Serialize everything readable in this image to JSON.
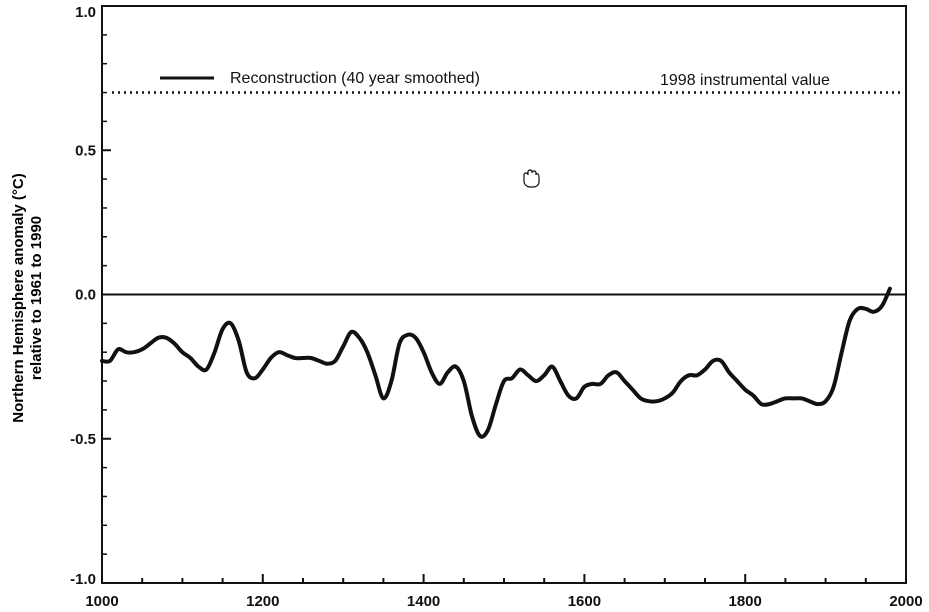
{
  "chart_data": {
    "type": "line",
    "ylabel_line1": "Northern Hemisphere anomaly (°C)",
    "ylabel_line2": "relative to 1961 to 1990",
    "xlim": [
      1000,
      2000
    ],
    "ylim": [
      -1.0,
      1.0
    ],
    "x_ticks": [
      {
        "value": 1000,
        "label": "1000"
      },
      {
        "value": 1200,
        "label": "1200"
      },
      {
        "value": 1400,
        "label": "1400"
      },
      {
        "value": 1600,
        "label": "1600"
      },
      {
        "value": 1800,
        "label": "1800"
      },
      {
        "value": 2000,
        "label": "2000"
      }
    ],
    "y_ticks": [
      {
        "value": 1.0,
        "label": "1.0"
      },
      {
        "value": 0.5,
        "label": "0.5"
      },
      {
        "value": 0.0,
        "label": "0.0"
      },
      {
        "value": -0.5,
        "label": "-0.5"
      },
      {
        "value": -1.0,
        "label": "-1.0"
      }
    ],
    "legend_line": "Reconstruction (40 year smoothed)",
    "legend_dotted": "1998 instrumental value",
    "instrumental_1998_value": 0.7,
    "zero_line": 0.0,
    "series": [
      {
        "name": "Reconstruction (40 year smoothed)",
        "x": [
          1000,
          1010,
          1020,
          1030,
          1040,
          1050,
          1060,
          1070,
          1080,
          1090,
          1100,
          1110,
          1120,
          1130,
          1140,
          1150,
          1160,
          1170,
          1180,
          1190,
          1200,
          1210,
          1220,
          1230,
          1240,
          1250,
          1260,
          1270,
          1280,
          1290,
          1300,
          1310,
          1320,
          1330,
          1340,
          1350,
          1360,
          1370,
          1380,
          1390,
          1400,
          1410,
          1420,
          1430,
          1440,
          1450,
          1460,
          1470,
          1480,
          1490,
          1500,
          1510,
          1520,
          1530,
          1540,
          1550,
          1560,
          1570,
          1580,
          1590,
          1600,
          1610,
          1620,
          1630,
          1640,
          1650,
          1660,
          1670,
          1680,
          1690,
          1700,
          1710,
          1720,
          1730,
          1740,
          1750,
          1760,
          1770,
          1780,
          1790,
          1800,
          1810,
          1820,
          1830,
          1840,
          1850,
          1860,
          1870,
          1880,
          1890,
          1900,
          1910,
          1920,
          1930,
          1940,
          1950,
          1960,
          1970,
          1980
        ],
        "y": [
          -0.23,
          -0.23,
          -0.19,
          -0.2,
          -0.2,
          -0.19,
          -0.17,
          -0.15,
          -0.15,
          -0.17,
          -0.2,
          -0.22,
          -0.25,
          -0.26,
          -0.2,
          -0.12,
          -0.1,
          -0.16,
          -0.27,
          -0.29,
          -0.26,
          -0.22,
          -0.2,
          -0.21,
          -0.22,
          -0.22,
          -0.22,
          -0.23,
          -0.24,
          -0.23,
          -0.18,
          -0.13,
          -0.15,
          -0.2,
          -0.28,
          -0.36,
          -0.3,
          -0.17,
          -0.14,
          -0.15,
          -0.2,
          -0.27,
          -0.31,
          -0.27,
          -0.25,
          -0.3,
          -0.42,
          -0.49,
          -0.47,
          -0.38,
          -0.3,
          -0.29,
          -0.26,
          -0.28,
          -0.3,
          -0.28,
          -0.25,
          -0.3,
          -0.35,
          -0.36,
          -0.32,
          -0.31,
          -0.31,
          -0.28,
          -0.27,
          -0.3,
          -0.33,
          -0.36,
          -0.37,
          -0.37,
          -0.36,
          -0.34,
          -0.3,
          -0.28,
          -0.28,
          -0.26,
          -0.23,
          -0.23,
          -0.27,
          -0.3,
          -0.33,
          -0.35,
          -0.38,
          -0.38,
          -0.37,
          -0.36,
          -0.36,
          -0.36,
          -0.37,
          -0.38,
          -0.37,
          -0.32,
          -0.2,
          -0.09,
          -0.05,
          -0.05,
          -0.06,
          -0.04,
          0.02
        ]
      }
    ]
  }
}
